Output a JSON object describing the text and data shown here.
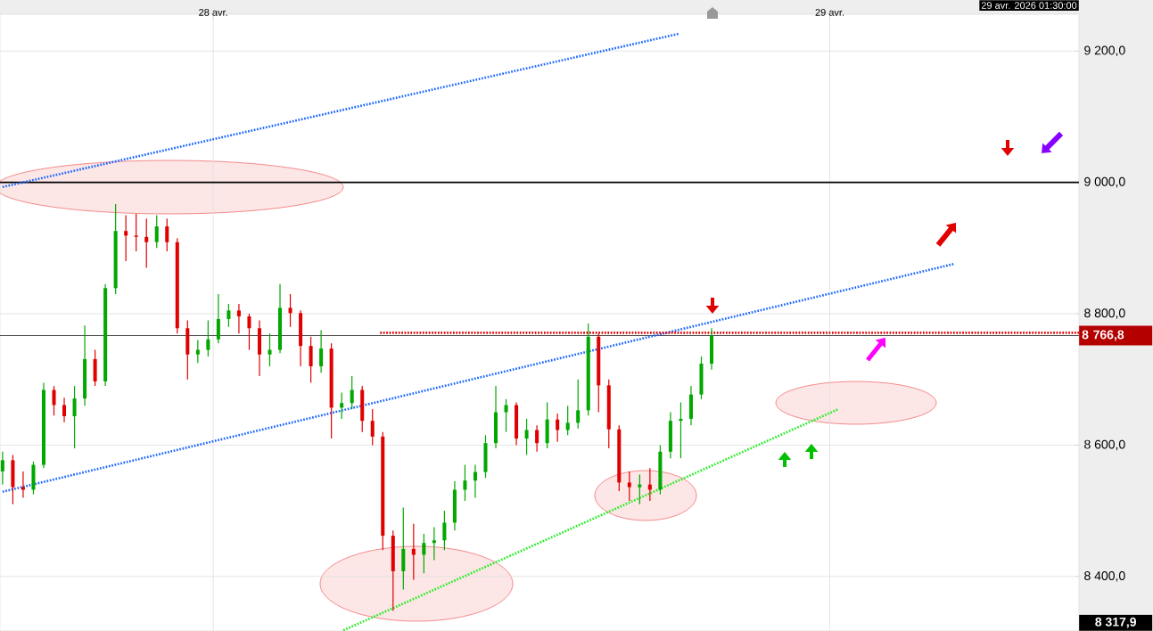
{
  "chart_data": {
    "type": "candlestick",
    "x": [
      "2026-04-27T15:48",
      "2026-04-27T16:12",
      "2026-04-27T16:36",
      "2026-04-27T17:00",
      "2026-04-27T17:24",
      "2026-04-27T17:48",
      "2026-04-27T18:12",
      "2026-04-27T18:36",
      "2026-04-27T19:00",
      "2026-04-27T19:24",
      "2026-04-27T19:48",
      "2026-04-27T20:12",
      "2026-04-27T20:36",
      "2026-04-27T21:00",
      "2026-04-27T21:24",
      "2026-04-27T21:48",
      "2026-04-27T22:12",
      "2026-04-27T22:36",
      "2026-04-27T23:00",
      "2026-04-27T23:24",
      "2026-04-27T23:48",
      "2026-04-28T00:12",
      "2026-04-28T00:36",
      "2026-04-28T01:00",
      "2026-04-28T01:24",
      "2026-04-28T01:48",
      "2026-04-28T02:12",
      "2026-04-28T02:36",
      "2026-04-28T03:00",
      "2026-04-28T03:24",
      "2026-04-28T03:48",
      "2026-04-28T04:12",
      "2026-04-28T04:36",
      "2026-04-28T05:00",
      "2026-04-28T05:24",
      "2026-04-28T05:48",
      "2026-04-28T06:12",
      "2026-04-28T06:36",
      "2026-04-28T07:00",
      "2026-04-28T07:24",
      "2026-04-28T07:48",
      "2026-04-28T08:12",
      "2026-04-28T08:36",
      "2026-04-28T09:00",
      "2026-04-28T09:24",
      "2026-04-28T09:48",
      "2026-04-28T10:12",
      "2026-04-28T10:36",
      "2026-04-28T11:00",
      "2026-04-28T11:24",
      "2026-04-28T11:48",
      "2026-04-28T12:12",
      "2026-04-28T12:36",
      "2026-04-28T13:00",
      "2026-04-28T13:24",
      "2026-04-28T13:48",
      "2026-04-28T14:12",
      "2026-04-28T14:36",
      "2026-04-28T15:00",
      "2026-04-28T15:24",
      "2026-04-28T15:48",
      "2026-04-28T16:12",
      "2026-04-28T16:36",
      "2026-04-28T17:00",
      "2026-04-28T17:24",
      "2026-04-28T17:48",
      "2026-04-28T18:12",
      "2026-04-28T18:36",
      "2026-04-28T19:00",
      "2026-04-28T19:24"
    ],
    "ohlc": [
      [
        8560,
        8590,
        8540,
        8577
      ],
      [
        8577,
        8585,
        8510,
        8536
      ],
      [
        8536,
        8560,
        8520,
        8532
      ],
      [
        8532,
        8575,
        8525,
        8570
      ],
      [
        8570,
        8695,
        8565,
        8684
      ],
      [
        8684,
        8690,
        8645,
        8661
      ],
      [
        8661,
        8672,
        8635,
        8644
      ],
      [
        8644,
        8690,
        8595,
        8671
      ],
      [
        8671,
        8782,
        8660,
        8731
      ],
      [
        8731,
        8745,
        8690,
        8697
      ],
      [
        8697,
        8845,
        8690,
        8839
      ],
      [
        8839,
        8967,
        8830,
        8926
      ],
      [
        8926,
        8950,
        8880,
        8919
      ],
      [
        8919,
        8952,
        8895,
        8917
      ],
      [
        8917,
        8945,
        8870,
        8909
      ],
      [
        8909,
        8950,
        8900,
        8933
      ],
      [
        8933,
        8945,
        8895,
        8909
      ],
      [
        8909,
        8915,
        8770,
        8778
      ],
      [
        8778,
        8790,
        8700,
        8738
      ],
      [
        8738,
        8760,
        8725,
        8745
      ],
      [
        8745,
        8790,
        8735,
        8761
      ],
      [
        8761,
        8830,
        8755,
        8792
      ],
      [
        8792,
        8815,
        8780,
        8805
      ],
      [
        8805,
        8815,
        8770,
        8796
      ],
      [
        8796,
        8800,
        8745,
        8778
      ],
      [
        8778,
        8790,
        8705,
        8738
      ],
      [
        8738,
        8770,
        8720,
        8745
      ],
      [
        8745,
        8845,
        8740,
        8809
      ],
      [
        8809,
        8830,
        8780,
        8801
      ],
      [
        8801,
        8805,
        8720,
        8751
      ],
      [
        8751,
        8765,
        8695,
        8720
      ],
      [
        8720,
        8775,
        8710,
        8747
      ],
      [
        8747,
        8755,
        8610,
        8657
      ],
      [
        8657,
        8680,
        8640,
        8664
      ],
      [
        8664,
        8705,
        8655,
        8684
      ],
      [
        8684,
        8690,
        8620,
        8637
      ],
      [
        8637,
        8655,
        8600,
        8613
      ],
      [
        8613,
        8620,
        8440,
        8462
      ],
      [
        8462,
        8470,
        8348,
        8408
      ],
      [
        8408,
        8505,
        8380,
        8442
      ],
      [
        8442,
        8480,
        8395,
        8433
      ],
      [
        8433,
        8465,
        8405,
        8451
      ],
      [
        8451,
        8475,
        8425,
        8455
      ],
      [
        8455,
        8500,
        8440,
        8482
      ],
      [
        8482,
        8545,
        8470,
        8532
      ],
      [
        8532,
        8570,
        8515,
        8546
      ],
      [
        8546,
        8570,
        8520,
        8559
      ],
      [
        8559,
        8615,
        8550,
        8603
      ],
      [
        8603,
        8690,
        8595,
        8650
      ],
      [
        8650,
        8670,
        8620,
        8661
      ],
      [
        8661,
        8665,
        8600,
        8610
      ],
      [
        8610,
        8640,
        8585,
        8623
      ],
      [
        8623,
        8630,
        8590,
        8603
      ],
      [
        8603,
        8665,
        8595,
        8639
      ],
      [
        8639,
        8648,
        8605,
        8623
      ],
      [
        8623,
        8660,
        8615,
        8634
      ],
      [
        8634,
        8700,
        8625,
        8653
      ],
      [
        8653,
        8785,
        8645,
        8765
      ],
      [
        8765,
        8770,
        8650,
        8691
      ],
      [
        8691,
        8700,
        8595,
        8624
      ],
      [
        8624,
        8630,
        8530,
        8543
      ],
      [
        8543,
        8560,
        8515,
        8536
      ],
      [
        8536,
        8555,
        8510,
        8540
      ],
      [
        8540,
        8565,
        8515,
        8532
      ],
      [
        8532,
        8600,
        8525,
        8590
      ],
      [
        8590,
        8650,
        8580,
        8637
      ],
      [
        8637,
        8665,
        8580,
        8640
      ],
      [
        8640,
        8690,
        8630,
        8677
      ],
      [
        8677,
        8735,
        8670,
        8724
      ],
      [
        8724,
        8778,
        8715,
        8766.8
      ]
    ],
    "colors": [
      "#00a800",
      "#e00000",
      "#e00000",
      "#00a800",
      "#00a800",
      "#e00000",
      "#e00000",
      "#00a800",
      "#00a800",
      "#e00000",
      "#00a800",
      "#00a800",
      "#e00000",
      "#e00000",
      "#e00000",
      "#00a800",
      "#e00000",
      "#e00000",
      "#e00000",
      "#00a800",
      "#00a800",
      "#00a800",
      "#00a800",
      "#e00000",
      "#e00000",
      "#e00000",
      "#00a800",
      "#00a800",
      "#e00000",
      "#e00000",
      "#e00000",
      "#00a800",
      "#e00000",
      "#00a800",
      "#00a800",
      "#e00000",
      "#e00000",
      "#e00000",
      "#e00000",
      "#00a800",
      "#e00000",
      "#00a800",
      "#00a800",
      "#00a800",
      "#00a800",
      "#00a800",
      "#00a800",
      "#00a800",
      "#00a800",
      "#00a800",
      "#e00000",
      "#00a800",
      "#e00000",
      "#00a800",
      "#e00000",
      "#00a800",
      "#00a800",
      "#00a800",
      "#e00000",
      "#e00000",
      "#e00000",
      "#e00000",
      "#00a800",
      "#e00000",
      "#00a800",
      "#00a800",
      "#00a800",
      "#00a800",
      "#00a800",
      "#00a800"
    ],
    "series": [
      {
        "type": "line",
        "color": "#1a66ff",
        "line_style": "dotted",
        "x": [
          "2026-04-27T15:48",
          "2026-04-28T18:06"
        ],
        "values": [
          8993,
          9226
        ]
      },
      {
        "type": "line",
        "color": "#1a66ff",
        "line_style": "dotted",
        "x": [
          "2026-04-27T15:48",
          "2026-04-29T04:51"
        ],
        "values": [
          8529,
          8876
        ]
      },
      {
        "type": "line",
        "color": "#22ee22",
        "line_style": "dotted",
        "x": [
          "2026-04-28T05:04",
          "2026-04-29T00:21"
        ],
        "values": [
          8318,
          8655
        ]
      },
      {
        "type": "line",
        "color": "#e00000",
        "line_style": "dotted",
        "x": [
          "2026-04-28T06:30",
          "2026-04-29T09:42"
        ],
        "values": [
          8771,
          8771
        ]
      }
    ],
    "ref_lines": [
      {
        "axis": "y",
        "value": 9000,
        "color": "#000000"
      },
      {
        "axis": "y",
        "value": 8766.8,
        "label": "8 766,8",
        "color": "#000000"
      }
    ],
    "annotations": [
      "8 317,9",
      "29 avr. 2026 01:30:00"
    ],
    "xlim": [
      "2026-04-27T15:42",
      "2026-04-29T09:42"
    ],
    "xticks": [
      {
        "value": "2026-04-28",
        "label": "28 avr."
      },
      {
        "value": "2026-04-29",
        "label": "29 avr."
      }
    ],
    "ylim": [
      8317,
      9256
    ],
    "yticks": [
      {
        "value": 8400,
        "label": "8 400,0"
      },
      {
        "value": 8600,
        "label": "8 600,0"
      },
      {
        "value": 8800,
        "label": "8 800,0"
      },
      {
        "value": 9000,
        "label": "9 000,0"
      },
      {
        "value": 9200,
        "label": "9 200,0"
      }
    ],
    "grid": true
  }
}
